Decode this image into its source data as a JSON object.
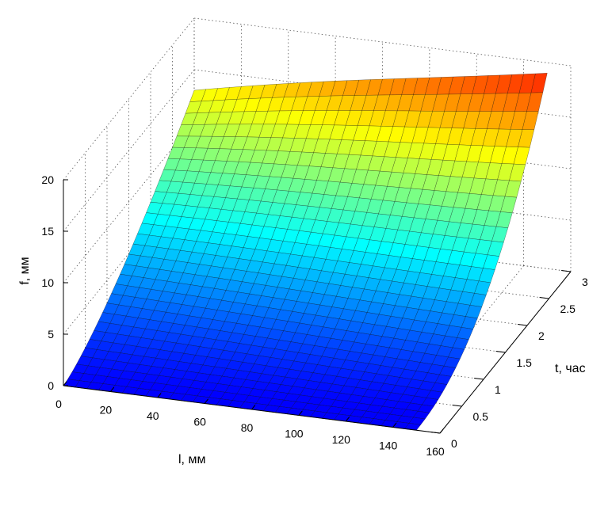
{
  "chart_data": {
    "type": "surface",
    "title": "",
    "xlabel": "l, мм",
    "ylabel": "t, час",
    "zlabel": "f, мм",
    "xlim": [
      0,
      160
    ],
    "ylim": [
      0,
      3
    ],
    "zlim": [
      0,
      20
    ],
    "x_ticks": [
      "0",
      "20",
      "40",
      "60",
      "80",
      "100",
      "120",
      "140",
      "160"
    ],
    "y_ticks": [
      "0",
      "0.5",
      "1",
      "1.5",
      "2",
      "2.5",
      "3"
    ],
    "z_ticks": [
      "0",
      "5",
      "10",
      "15",
      "20"
    ],
    "grid": true,
    "colormap": "jet",
    "surface_samples": {
      "note_x_values": [
        0,
        150
      ],
      "note_y_values": [
        0,
        3
      ],
      "corner_z": {
        "x0_y0": 0,
        "x150_y0": 0,
        "x0_y3": 13,
        "x150_y3": 19
      }
    }
  }
}
